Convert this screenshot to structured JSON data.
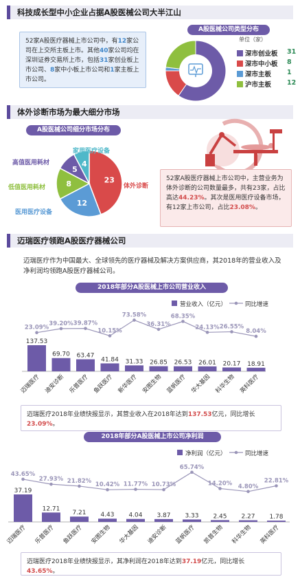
{
  "section1": {
    "title": "科技成长型中小企业占据A股医械公司大半江山",
    "text_a": "52家A股医疗器械上市公司中，有",
    "text_a_num": "12",
    "text_b": "家公司在上交所主板上市。其他",
    "text_b_num": "40",
    "text_c": "家公司均在深圳证券交易所上市，包括",
    "text_c_num1": "31",
    "text_d": "家创业板上市公司、",
    "text_d_num": "8",
    "text_e": "家中小板上市公司和",
    "text_e_num": "1",
    "text_f": "家主板上市公司。",
    "pill": "A股医械公司类型分布",
    "unit_label": "单位（家）",
    "colors": {
      "chuangye": "#6d5ba8",
      "zhongxiao": "#d94a4a",
      "shenzhu": "#5b9bd5",
      "huzhu": "#8fbf3f"
    }
  },
  "section2": {
    "title": "体外诊断市场为最大细分市场",
    "pill": "A股医械公司细分市场分布",
    "text_a": "52家A股医疗器械上市公司中，主营业务为体外诊断的公司数量最多，共有23家，占比高达",
    "text_a_pct": "44.23%",
    "text_b": "。其次是医用医疗设备市场，有12家上市公司，占比",
    "text_b_pct": "23.08%",
    "text_c": "。"
  },
  "section3": {
    "title": "迈瑞医疗领跑A股医疗器械公司",
    "intro": "迈瑞医疗作为中国最大、全球领先的医疗器械及解决方案供应商，其2018年的营业收入及净利润均领跑A股医疗器械公司。",
    "pill_revenue": "2018年部分A股医械上市公司营业收入",
    "pill_profit": "2018年部分A股医械上市公司净利润",
    "legend_revenue": "营业收入（亿元）",
    "legend_profit": "净利润（亿元）",
    "legend_growth": "同比增速",
    "note_rev_a": "迈瑞医疗2018年业绩快报显示，其营业收入在2018年达到",
    "note_rev_num": "137.53",
    "note_rev_b": "亿元，同比增长",
    "note_rev_pct": "23.09%",
    "note_rev_c": "。",
    "note_pro_a": "迈瑞医疗2018年业绩快报显示，其净利润在2018年达到",
    "note_pro_num": "37.19",
    "note_pro_b": "亿元，同比增长",
    "note_pro_pct": "43.65%",
    "note_pro_c": "。"
  },
  "chart_data": [
    {
      "type": "pie",
      "title": "A股医械公司类型分布",
      "unit": "单位（家）",
      "categories": [
        "深市创业板",
        "深市中小板",
        "深市主板",
        "沪市主板"
      ],
      "values": [
        31,
        8,
        1,
        12
      ],
      "colors": [
        "#6d5ba8",
        "#d94a4a",
        "#5b9bd5",
        "#8fbf3f"
      ],
      "legend": "right"
    },
    {
      "type": "pie",
      "title": "A股医械公司细分市场分布",
      "categories": [
        "体外诊断",
        "医用医疗设备",
        "低值医用耗材",
        "高值医用耗材",
        "家用医疗设备"
      ],
      "values": [
        23,
        12,
        8,
        5,
        4
      ],
      "colors": [
        "#d94a4a",
        "#5b9bd5",
        "#8fbf3f",
        "#6d5ba8",
        "#4fb8c9"
      ]
    },
    {
      "type": "bar",
      "title": "2018年部分A股医械上市公司营业收入",
      "categories": [
        "迈瑞医疗",
        "迪安诊断",
        "乐普医疗",
        "鱼跃医疗",
        "新华医疗",
        "安图生物",
        "蓝帆医疗",
        "华大基因",
        "科华生物",
        "英科医疗"
      ],
      "series": [
        {
          "name": "营业收入（亿元）",
          "values": [
            137.53,
            69.7,
            63.47,
            41.84,
            31.33,
            26.85,
            26.53,
            26.01,
            20.17,
            18.91
          ]
        },
        {
          "name": "同比增速",
          "values": [
            "23.09%",
            "39.20%",
            "39.87%",
            "10.15%",
            "73.58%",
            "36.31%",
            "68.35%",
            "24.13%",
            "26.55%",
            "8.04%"
          ]
        }
      ],
      "growth_numeric": [
        23.09,
        39.2,
        39.87,
        10.15,
        73.58,
        36.31,
        68.35,
        24.13,
        26.55,
        8.04
      ],
      "legend": "top-right"
    },
    {
      "type": "bar",
      "title": "2018年部分A股医械上市公司净利润",
      "categories": [
        "迈瑞医疗",
        "乐普医疗",
        "鱼跃医疗",
        "安图生物",
        "华大基因",
        "迪安诊断",
        "蓝帆医疗",
        "凯普生物",
        "科华生物",
        "英科医疗"
      ],
      "series": [
        {
          "name": "净利润（亿元）",
          "values": [
            37.19,
            12.71,
            7.21,
            4.43,
            4.04,
            3.87,
            3.33,
            2.45,
            2.27,
            1.78
          ]
        },
        {
          "name": "同比增速",
          "values": [
            "43.65%",
            "27.93%",
            "21.82%",
            "10.42%",
            "11.77%",
            "10.73%",
            "65.74%",
            "14.20%",
            "4.80%",
            "22.81%"
          ]
        }
      ],
      "growth_numeric": [
        43.65,
        27.93,
        21.82,
        10.42,
        11.77,
        10.73,
        65.74,
        14.2,
        4.8,
        22.81
      ],
      "legend": "top-right"
    }
  ]
}
